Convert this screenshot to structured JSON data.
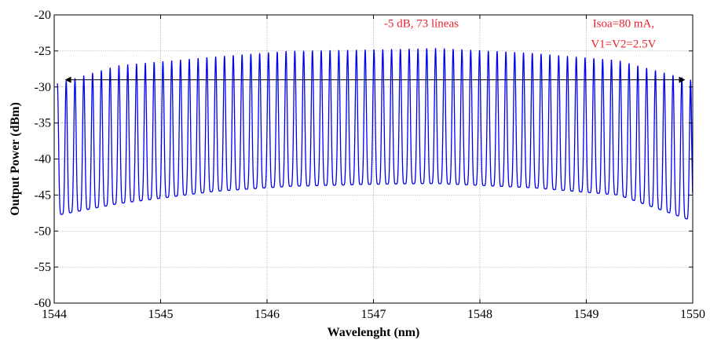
{
  "chart_data": {
    "type": "line",
    "title": "",
    "xlabel": "Wavelenght (nm)",
    "ylabel": "Output Power (dBm)",
    "xlim": [
      1544,
      1550
    ],
    "ylim": [
      -60,
      -20
    ],
    "xticks": [
      1544,
      1545,
      1546,
      1547,
      1548,
      1549,
      1550
    ],
    "yticks": [
      -60,
      -55,
      -50,
      -45,
      -40,
      -35,
      -30,
      -25,
      -20
    ],
    "xtick_labels": [
      "1544",
      "1545",
      "1546",
      "1547",
      "1548",
      "1549",
      "1550"
    ],
    "ytick_labels": [
      "-60",
      "-55",
      "-50",
      "-45",
      "-40",
      "-35",
      "-30",
      "-25",
      "-20"
    ],
    "grid": true,
    "legend": "none",
    "series": [
      {
        "color": "#0000ee",
        "description": "optical frequency comb spectrum",
        "line_count": 73,
        "x_start": 1544.03,
        "x_end": 1549.98,
        "peak_envelope": {
          "x": [
            1544.03,
            1544.6,
            1545.5,
            1546.2,
            1547.0,
            1547.6,
            1548.5,
            1549.3,
            1549.98
          ],
          "y": [
            -29.5,
            -27.0,
            -25.8,
            -25.0,
            -24.8,
            -24.6,
            -25.3,
            -26.3,
            -29.0
          ]
        },
        "valley_envelope": {
          "x": [
            1544.03,
            1544.6,
            1545.5,
            1546.2,
            1547.0,
            1547.6,
            1548.5,
            1549.3,
            1549.98
          ],
          "y": [
            -47.8,
            -46.2,
            -44.5,
            -43.8,
            -43.5,
            -43.4,
            -44.0,
            -45.0,
            -48.5
          ]
        }
      }
    ],
    "annotations": [
      {
        "text": "-5 dB, 73 líneas",
        "x": 1547.45,
        "y": -21.7
      },
      {
        "text": "Isoa=80 mA,",
        "x": 1549.35,
        "y": -21.7
      },
      {
        "text": "V1=V2=2.5V",
        "x": 1549.35,
        "y": -24.5
      }
    ],
    "arrow": {
      "x_start": 1544.1,
      "x_end": 1549.93,
      "y": -29
    },
    "colors": {
      "trace": "#0000ee",
      "annotation": "#e8202a",
      "arrow": "#000000"
    }
  }
}
